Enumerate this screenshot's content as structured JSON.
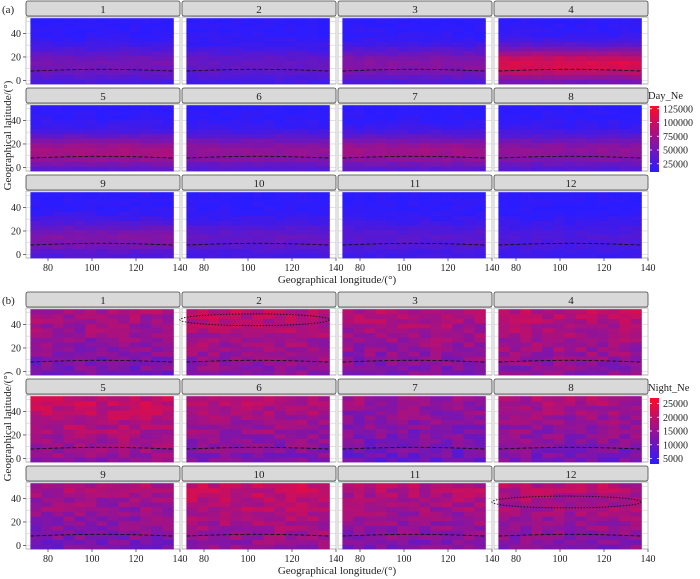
{
  "chart_data": [
    {
      "type": "heatmap",
      "tag": "(a)",
      "facets": [
        "1",
        "2",
        "3",
        "4",
        "5",
        "6",
        "7",
        "8",
        "9",
        "10",
        "11",
        "12"
      ],
      "xlabel": "Geographical longitude/(°)",
      "ylabel": "Geographical latitude/(°)",
      "xticks": [
        80,
        100,
        120,
        140
      ],
      "yticks": [
        0,
        20,
        40
      ],
      "xlim": [
        70,
        140
      ],
      "ylim": [
        -3,
        54
      ],
      "data_extent": {
        "lon": [
          72,
          137
        ],
        "lat": [
          -3,
          53
        ]
      },
      "legend_title": "Day_Ne",
      "legend_ticks": [
        125000,
        100000,
        75000,
        50000,
        25000
      ],
      "value_range": [
        10000,
        130000
      ],
      "colors": [
        "#2b1cff",
        "#ff0a28"
      ],
      "equator_line": "dashed",
      "monthly_equatorial_peak": [
        55000,
        45000,
        65000,
        115000,
        85000,
        72000,
        80000,
        70000,
        62000,
        45000,
        38000,
        32000
      ],
      "ellipses": []
    },
    {
      "type": "heatmap",
      "tag": "(b)",
      "facets": [
        "1",
        "2",
        "3",
        "4",
        "5",
        "6",
        "7",
        "8",
        "9",
        "10",
        "11",
        "12"
      ],
      "xlabel": "Geographical longitude/(°)",
      "ylabel": "Geographical latitude/(°)",
      "xticks": [
        80,
        100,
        120,
        140
      ],
      "yticks": [
        0,
        20,
        40
      ],
      "xlim": [
        70,
        140
      ],
      "ylim": [
        -3,
        54
      ],
      "data_extent": {
        "lon": [
          72,
          137
        ],
        "lat": [
          -3,
          53
        ]
      },
      "legend_title": "Night_Ne",
      "legend_ticks": [
        25000,
        20000,
        15000,
        10000,
        5000
      ],
      "value_range": [
        3000,
        27000
      ],
      "colors": [
        "#2b1cff",
        "#ff0a28"
      ],
      "equator_line": "dashed",
      "monthly_mean": [
        14000,
        16000,
        15000,
        16000,
        17000,
        15000,
        12500,
        14000,
        14000,
        17000,
        15000,
        15500
      ],
      "ellipses": [
        {
          "facet": "2",
          "center": [
            103,
            44
          ],
          "radius": [
            34,
            5
          ]
        },
        {
          "facet": "12",
          "center": [
            103,
            37
          ],
          "radius": [
            34,
            5
          ]
        }
      ]
    }
  ]
}
